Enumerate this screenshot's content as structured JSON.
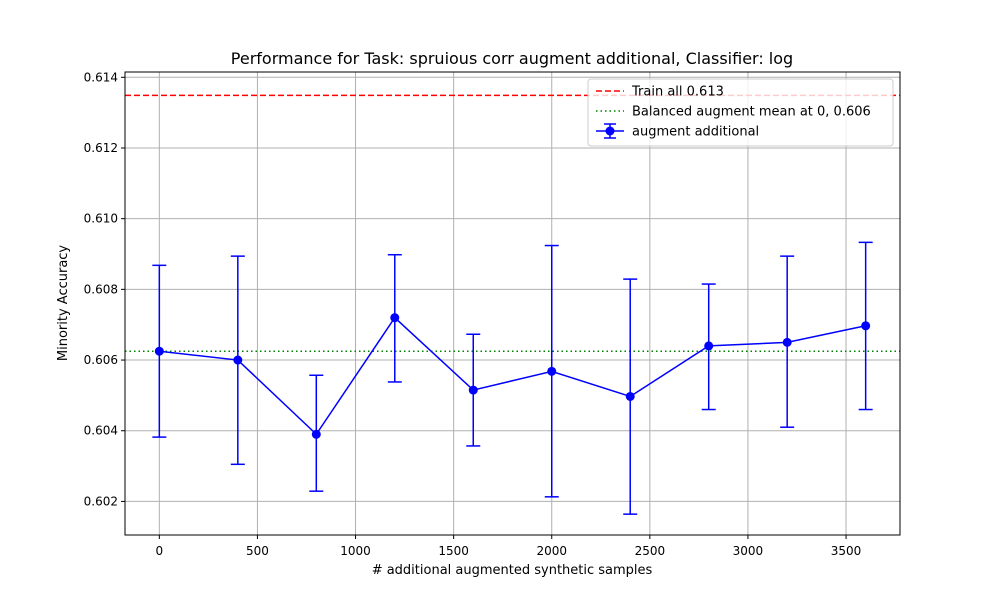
{
  "chart_data": {
    "type": "line",
    "title": "Performance for Task: spruious corr augment additional, Classifier: log",
    "xlabel": "# additional augmented synthetic samples",
    "ylabel": "Minority Accuracy",
    "xlim": [
      -175,
      3775
    ],
    "ylim": [
      0.60105,
      0.61415
    ],
    "x_ticks": [
      0,
      500,
      1000,
      1500,
      2000,
      2500,
      3000,
      3500
    ],
    "y_ticks": [
      0.602,
      0.604,
      0.606,
      0.608,
      0.61,
      0.612,
      0.614
    ],
    "x_tick_labels": [
      "0",
      "500",
      "1000",
      "1500",
      "2000",
      "2500",
      "3000",
      "3500"
    ],
    "y_tick_labels": [
      "0.602",
      "0.604",
      "0.606",
      "0.608",
      "0.610",
      "0.612",
      "0.614"
    ],
    "grid": true,
    "legend_position": "top-right",
    "series": [
      {
        "name": "augment additional",
        "color": "#0000ff",
        "marker": "circle",
        "x": [
          0,
          400,
          800,
          1200,
          1600,
          2000,
          2400,
          2800,
          3200,
          3600
        ],
        "y": [
          0.60625,
          0.606,
          0.6039,
          0.6072,
          0.60515,
          0.60568,
          0.60497,
          0.6064,
          0.6065,
          0.60697
        ],
        "error_low": [
          0.60382,
          0.60305,
          0.60229,
          0.60538,
          0.60357,
          0.60213,
          0.60164,
          0.6046,
          0.6041,
          0.6046
        ],
        "error_high": [
          0.60868,
          0.60894,
          0.60557,
          0.60898,
          0.60673,
          0.60924,
          0.60829,
          0.60815,
          0.60894,
          0.60933
        ]
      }
    ],
    "reference_lines": [
      {
        "name": "Train all  0.613",
        "y": 0.61349,
        "color": "#ff0000",
        "style": "dashed"
      },
      {
        "name": "Balanced augment mean at 0, 0.606",
        "y": 0.60625,
        "color": "#008000",
        "style": "dotted"
      }
    ],
    "legend_entries": [
      {
        "label": "Train all  0.613",
        "color": "#ff0000",
        "style": "dashed"
      },
      {
        "label": "Balanced augment mean at 0, 0.606",
        "color": "#008000",
        "style": "dotted"
      },
      {
        "label": "augment additional",
        "color": "#0000ff",
        "style": "errorbar"
      }
    ]
  }
}
